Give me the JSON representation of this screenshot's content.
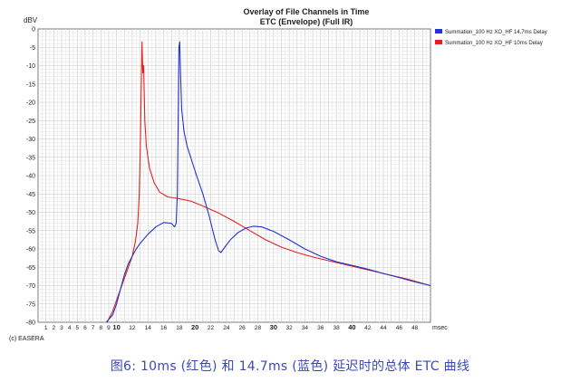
{
  "app_label": "(c) EASERA",
  "caption": "图6: 10ms (红色) 和 14.7ms (蓝色) 延迟时的总体 ETC 曲线",
  "chart_data": {
    "type": "line",
    "title": "Overlay of File Channels in Time",
    "subtitle": "ETC (Envelope) (Full IR)",
    "ylabel": "dBV",
    "xlabel": "msec",
    "xlim": [
      0,
      50
    ],
    "ylim": [
      -80,
      0
    ],
    "x_ticks": [
      1,
      2,
      3,
      4,
      5,
      6,
      7,
      8,
      9,
      10,
      12,
      14,
      16,
      18,
      20,
      22,
      24,
      26,
      28,
      30,
      32,
      34,
      36,
      38,
      40,
      42,
      44,
      46,
      48
    ],
    "x_ticks_bold": [
      10,
      20,
      30,
      40
    ],
    "y_ticks": [
      0,
      -5,
      -10,
      -15,
      -20,
      -25,
      -30,
      -35,
      -40,
      -45,
      -50,
      -55,
      -60,
      -65,
      -70,
      -75,
      -80
    ],
    "grid": true,
    "legend_position": "top-right",
    "series": [
      {
        "name": "Summation_100 Hz XO_HF 14,7ms Delay",
        "color": "#2333cc",
        "points": [
          [
            8.7,
            -80
          ],
          [
            9.5,
            -78
          ],
          [
            10,
            -75
          ],
          [
            10.5,
            -71
          ],
          [
            11,
            -67
          ],
          [
            11.5,
            -64
          ],
          [
            12,
            -62
          ],
          [
            12.5,
            -60
          ],
          [
            13,
            -58.5
          ],
          [
            14,
            -56
          ],
          [
            15,
            -54
          ],
          [
            16,
            -52.8
          ],
          [
            17,
            -53
          ],
          [
            17.4,
            -54
          ],
          [
            17.6,
            -53
          ],
          [
            17.75,
            -45
          ],
          [
            17.85,
            -25
          ],
          [
            17.95,
            -5
          ],
          [
            18.05,
            -3.5
          ],
          [
            18.15,
            -12
          ],
          [
            18.3,
            -22
          ],
          [
            18.6,
            -28
          ],
          [
            19,
            -32
          ],
          [
            19.6,
            -36
          ],
          [
            20.2,
            -40
          ],
          [
            21,
            -45
          ],
          [
            21.8,
            -51
          ],
          [
            22.5,
            -57
          ],
          [
            23,
            -60.5
          ],
          [
            23.3,
            -61
          ],
          [
            23.8,
            -59.5
          ],
          [
            24.5,
            -57.5
          ],
          [
            25.5,
            -55.5
          ],
          [
            26.5,
            -54.3
          ],
          [
            27.5,
            -53.8
          ],
          [
            28.5,
            -54
          ],
          [
            30,
            -55.2
          ],
          [
            32,
            -57.5
          ],
          [
            34,
            -60
          ],
          [
            36,
            -62
          ],
          [
            38,
            -63.5
          ],
          [
            40,
            -64.5
          ],
          [
            42,
            -65.5
          ],
          [
            44,
            -66.7
          ],
          [
            46,
            -67.8
          ],
          [
            48,
            -69
          ],
          [
            50,
            -70
          ]
        ]
      },
      {
        "name": "Summation_100 Hz XO_HF 10ms Delay",
        "color": "#e0221f",
        "points": [
          [
            8.8,
            -80
          ],
          [
            9.5,
            -77
          ],
          [
            10,
            -74
          ],
          [
            10.5,
            -71
          ],
          [
            11,
            -68
          ],
          [
            11.5,
            -65
          ],
          [
            12,
            -62
          ],
          [
            12.4,
            -58
          ],
          [
            12.7,
            -53
          ],
          [
            12.9,
            -45
          ],
          [
            13.05,
            -30
          ],
          [
            13.15,
            -15
          ],
          [
            13.25,
            -3.5
          ],
          [
            13.35,
            -12
          ],
          [
            13.45,
            -10
          ],
          [
            13.6,
            -25
          ],
          [
            13.8,
            -32
          ],
          [
            14.2,
            -38
          ],
          [
            14.8,
            -42
          ],
          [
            15.5,
            -44.5
          ],
          [
            16.5,
            -45.8
          ],
          [
            18,
            -46.3
          ],
          [
            19.5,
            -47
          ],
          [
            21,
            -48.3
          ],
          [
            23,
            -50.2
          ],
          [
            25,
            -52.5
          ],
          [
            27,
            -55
          ],
          [
            29,
            -57.5
          ],
          [
            31,
            -59.5
          ],
          [
            33,
            -61
          ],
          [
            35,
            -62.2
          ],
          [
            37,
            -63.2
          ],
          [
            39,
            -64.2
          ],
          [
            41,
            -65.2
          ],
          [
            43,
            -66.2
          ],
          [
            45,
            -67.2
          ],
          [
            47,
            -68.2
          ],
          [
            50,
            -70
          ]
        ]
      }
    ]
  }
}
